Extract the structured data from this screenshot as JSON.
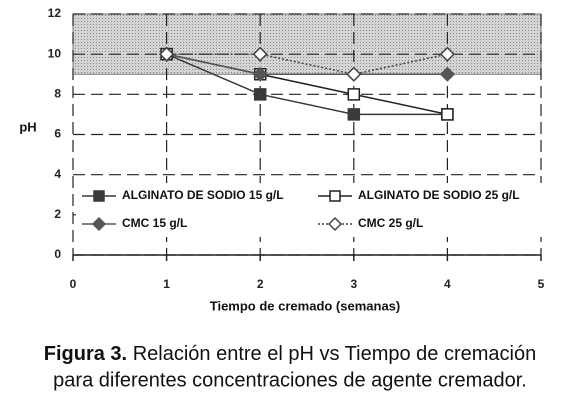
{
  "chart_data": {
    "type": "line",
    "x": [
      1,
      2,
      3,
      4
    ],
    "series": [
      {
        "name": "ALGINATO DE SODIO 15 g/L",
        "color": "#3a3a3a",
        "marker": "square",
        "filled": true,
        "dash": "solid",
        "values": [
          10,
          8,
          7,
          7
        ]
      },
      {
        "name": "ALGINATO DE SODIO 25 g/L",
        "color": "#222222",
        "marker": "square",
        "filled": false,
        "dash": "solid",
        "values": [
          10,
          9,
          8,
          7
        ]
      },
      {
        "name": "CMC 15 g/L",
        "color": "#555555",
        "marker": "diamond",
        "filled": true,
        "dash": "solid",
        "values": [
          10,
          9,
          9,
          9
        ]
      },
      {
        "name": "CMC 25 g/L",
        "color": "#444444",
        "marker": "diamond",
        "filled": false,
        "dash": "dotted",
        "values": [
          10,
          10,
          9,
          10
        ]
      }
    ],
    "band": [
      9,
      12
    ],
    "xlim": [
      0,
      5
    ],
    "xticks": [
      0,
      1,
      2,
      3,
      4,
      5
    ],
    "ylim": [
      0,
      12
    ],
    "yticks": [
      0,
      2,
      4,
      6,
      8,
      10,
      12
    ],
    "grid": true,
    "ylabel": "pH",
    "xlabel": "Tiempo de cremado (semanas)"
  },
  "caption": {
    "label": "Figura 3.",
    "text": [
      "Relación entre el pH vs Tiempo de cremación",
      "para diferentes concentraciones de agente cremador."
    ]
  }
}
